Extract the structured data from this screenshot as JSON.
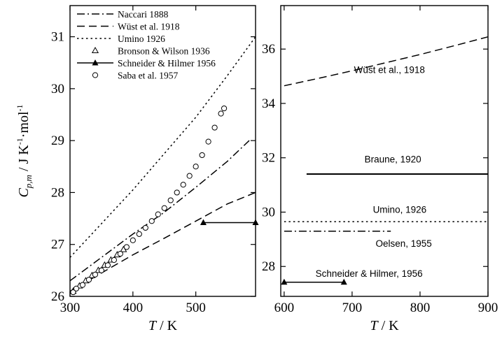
{
  "chart_data": [
    {
      "type": "line",
      "panel": "left",
      "xlabel_symbol": "T",
      "xlabel_unit": "/ K",
      "ylabel_symbol": "C",
      "ylabel_sub": "p,m",
      "ylabel_unit": "/ J K",
      "ylabel_sup1": "-1",
      "ylabel_unit2": "mol",
      "ylabel_sup2": "-1",
      "xlim": [
        300,
        595
      ],
      "ylim": [
        26,
        31.6
      ],
      "xticks": [
        300,
        400,
        500
      ],
      "yticks": [
        26,
        27,
        28,
        29,
        30,
        31
      ],
      "legend_position": "top-left",
      "series": [
        {
          "name": "Naccari 1888",
          "style": "dashdot",
          "x": [
            300,
            350,
            400,
            450,
            500,
            550,
            585
          ],
          "y": [
            26.3,
            26.75,
            27.2,
            27.62,
            28.1,
            28.6,
            29.0
          ]
        },
        {
          "name": "Wüst et al. 1918",
          "style": "dashed",
          "x": [
            300,
            350,
            400,
            450,
            500,
            550,
            595
          ],
          "y": [
            26.1,
            26.45,
            26.8,
            27.12,
            27.45,
            27.78,
            28.0
          ]
        },
        {
          "name": "Umino 1926",
          "style": "dotted",
          "x": [
            300,
            350,
            400,
            450,
            500,
            550,
            595
          ],
          "y": [
            26.75,
            27.4,
            28.05,
            28.75,
            29.45,
            30.25,
            31.0
          ]
        },
        {
          "name": "Bronson & Wilson 1936",
          "style": "marker-triangle-open",
          "x": [
            305,
            315,
            325,
            335,
            345,
            355,
            365,
            375,
            385
          ],
          "y": [
            26.1,
            26.2,
            26.3,
            26.4,
            26.5,
            26.6,
            26.7,
            26.8,
            26.9
          ]
        },
        {
          "name": "Schneider & Hilmer 1956",
          "style": "solid-triangle-filled",
          "x": [
            512,
            595
          ],
          "y": [
            27.42,
            27.42
          ]
        },
        {
          "name": "Saba et al. 1957",
          "style": "marker-circle-open",
          "x": [
            305,
            310,
            320,
            330,
            340,
            350,
            360,
            370,
            380,
            390,
            400,
            410,
            420,
            430,
            440,
            450,
            460,
            470,
            480,
            490,
            500,
            510,
            520,
            530,
            540,
            545
          ],
          "y": [
            26.08,
            26.15,
            26.22,
            26.32,
            26.42,
            26.5,
            26.6,
            26.7,
            26.82,
            26.95,
            27.08,
            27.2,
            27.32,
            27.45,
            27.58,
            27.7,
            27.85,
            28.0,
            28.15,
            28.32,
            28.5,
            28.72,
            28.98,
            29.25,
            29.52,
            29.62
          ]
        }
      ]
    },
    {
      "type": "line",
      "panel": "right",
      "xlabel_symbol": "T",
      "xlabel_unit": "/ K",
      "xlim": [
        595,
        900
      ],
      "ylim": [
        26.9,
        37.6
      ],
      "xticks": [
        600,
        700,
        800,
        900
      ],
      "yticks": [
        28,
        30,
        32,
        34,
        36
      ],
      "series": [
        {
          "name": "Wüst et al., 1918",
          "style": "dashed",
          "x": [
            600,
            650,
            700,
            750,
            800,
            850,
            900
          ],
          "y": [
            34.65,
            34.92,
            35.2,
            35.5,
            35.8,
            36.12,
            36.45
          ]
        },
        {
          "name": "Braune, 1920",
          "style": "solid",
          "x": [
            633,
            900
          ],
          "y": [
            31.4,
            31.4
          ]
        },
        {
          "name": "Umino, 1926",
          "style": "dotted",
          "x": [
            600,
            900
          ],
          "y": [
            29.65,
            29.65
          ]
        },
        {
          "name": "Oelsen, 1955",
          "style": "dashdot",
          "x": [
            600,
            757
          ],
          "y": [
            29.3,
            29.3
          ]
        },
        {
          "name": "Schneider & Hilmer, 1956",
          "style": "solid-triangle-filled",
          "x": [
            600,
            688
          ],
          "y": [
            27.42,
            27.42
          ]
        }
      ],
      "annotations": [
        {
          "text": "Wüst et al., 1918",
          "x": 755,
          "y": 35.25
        },
        {
          "text": "Braune, 1920",
          "x": 760,
          "y": 31.95
        },
        {
          "text": "Umino, 1926",
          "x": 770,
          "y": 30.1
        },
        {
          "text": "Oelsen, 1955",
          "x": 776,
          "y": 28.85
        },
        {
          "text": "Schneider & Hilmer, 1956",
          "x": 725,
          "y": 27.75
        }
      ]
    }
  ]
}
